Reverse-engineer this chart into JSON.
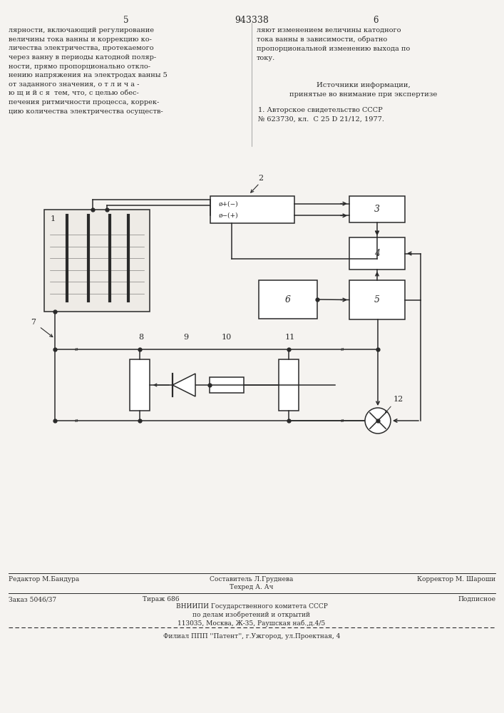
{
  "bg_color": "#f5f3f0",
  "text_color": "#2a2a2a",
  "page_num_left": "5",
  "page_num_center": "943338",
  "page_num_right": "6",
  "text_left_lines": [
    "лярности, включающий регулирование",
    "величины тока ванны и коррекцию ко-",
    "личества электричества, протекаемого",
    "через ванну в периоды катодной поляр-",
    "ности, прямо пропорционально откло-",
    "нению напряжения на электродах ванны 5",
    "от заданного значения, о т л и ч а -",
    "ю щ и й с я  тем, что, с целью обес-",
    "печения ритмичности процесса, коррек-",
    "цию количества электричества осуществ-"
  ],
  "text_right_top_lines": [
    "ляют изменением величины катодного",
    "тока ванны в зависимости, обратно",
    "пропорциональной изменению выхода по",
    "току."
  ],
  "sources_title": "Источники информации,",
  "sources_subtitle": "принятые во внимание при экспертизе",
  "sources_body": "1. Авторское свидетельство СССР\n№ 623730, кл.  С 25 D 21/12, 1977.",
  "footer1_left": "Редактор М.Бандура",
  "footer1_center": "Составитель Л.Груднева\nТехред А. Ач",
  "footer1_right": "Корректор М. Шароши",
  "footer2_left": "Заказ 5046/37",
  "footer2_center_title": "Тираж 686",
  "footer2_center_body": "ВНИИПИ Государственного комитета СССР\nпо делам изобретений и открытий\n113035, Москва, Ж-35, Раушская наб.,д.4/5",
  "footer2_right": "Подписное",
  "footer3": "Филиал ППП ''Патент'', г.Ужгород, ул.Проектная, 4"
}
